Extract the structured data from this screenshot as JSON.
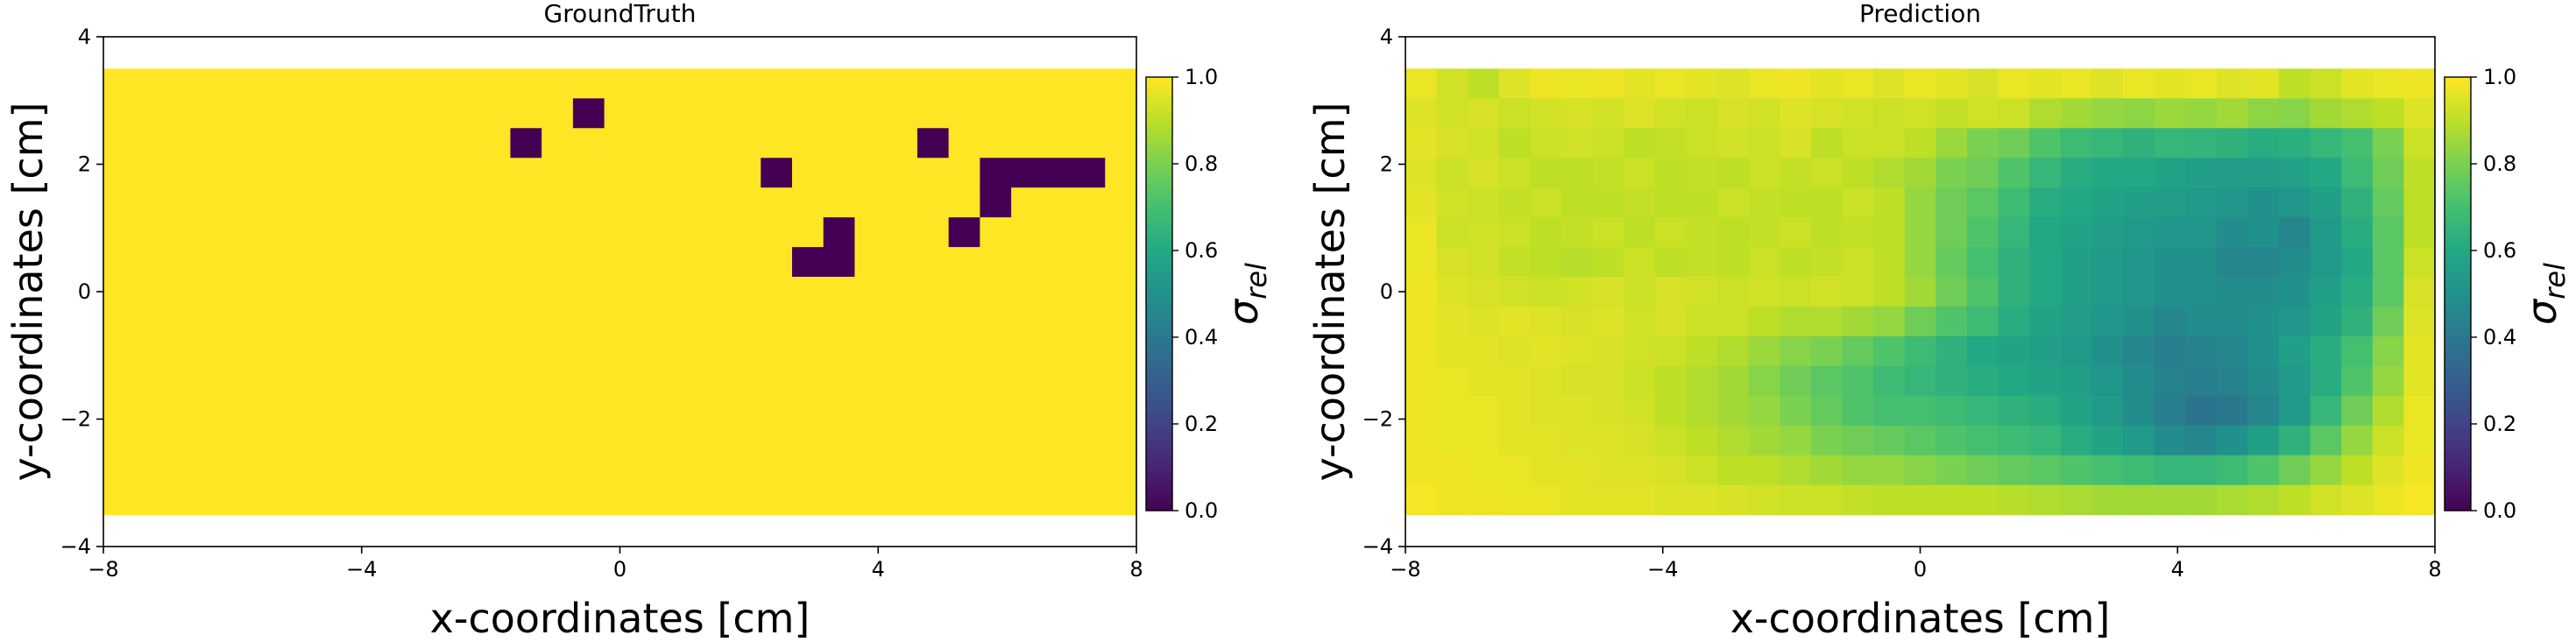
{
  "chart_data": [
    {
      "type": "heatmap",
      "title": "GroundTruth",
      "xlabel": "x-coordinates [cm]",
      "ylabel": "y-coordinates [cm]",
      "xlim": [
        -8,
        8
      ],
      "ylim": [
        -4,
        4
      ],
      "xticks": [
        -8,
        -4,
        0,
        4,
        8
      ],
      "yticks": [
        -4,
        -2,
        0,
        2,
        4
      ],
      "xtick_labels": [
        "−8",
        "−4",
        "0",
        "4",
        "8"
      ],
      "ytick_labels": [
        "−4",
        "−2",
        "0",
        "2",
        "4"
      ],
      "grid": {
        "x_start": -8,
        "x_end": 8,
        "y_start": 3.5,
        "y_end": -3.5,
        "cols": 33,
        "rows": 15
      },
      "colorbar": {
        "label": "σ_rel",
        "min": 0.0,
        "max": 1.0,
        "ticks": [
          "0.0",
          "0.2",
          "0.4",
          "0.6",
          "0.8",
          "1.0"
        ],
        "colormap": "viridis"
      },
      "values": [
        [
          1,
          1,
          1,
          1,
          1,
          1,
          1,
          1,
          1,
          1,
          1,
          1,
          1,
          1,
          1,
          1,
          1,
          1,
          1,
          1,
          1,
          1,
          1,
          1,
          1,
          1,
          1,
          1,
          1,
          1,
          1,
          1,
          1
        ],
        [
          1,
          1,
          1,
          1,
          1,
          1,
          1,
          1,
          1,
          1,
          1,
          1,
          1,
          1,
          1,
          0,
          1,
          1,
          1,
          1,
          1,
          1,
          1,
          1,
          1,
          1,
          1,
          1,
          1,
          1,
          1,
          1,
          1
        ],
        [
          1,
          1,
          1,
          1,
          1,
          1,
          1,
          1,
          1,
          1,
          1,
          1,
          1,
          0,
          1,
          1,
          1,
          1,
          1,
          1,
          1,
          1,
          1,
          1,
          1,
          1,
          0,
          1,
          1,
          1,
          1,
          1,
          1
        ],
        [
          1,
          1,
          1,
          1,
          1,
          1,
          1,
          1,
          1,
          1,
          1,
          1,
          1,
          1,
          1,
          1,
          1,
          1,
          1,
          1,
          1,
          0,
          1,
          1,
          1,
          1,
          1,
          1,
          0,
          0,
          0,
          0,
          1
        ],
        [
          1,
          1,
          1,
          1,
          1,
          1,
          1,
          1,
          1,
          1,
          1,
          1,
          1,
          1,
          1,
          1,
          1,
          1,
          1,
          1,
          1,
          1,
          1,
          1,
          1,
          1,
          1,
          1,
          0,
          1,
          1,
          1,
          1
        ],
        [
          1,
          1,
          1,
          1,
          1,
          1,
          1,
          1,
          1,
          1,
          1,
          1,
          1,
          1,
          1,
          1,
          1,
          1,
          1,
          1,
          1,
          1,
          1,
          0,
          1,
          1,
          1,
          0,
          1,
          1,
          1,
          1,
          1
        ],
        [
          1,
          1,
          1,
          1,
          1,
          1,
          1,
          1,
          1,
          1,
          1,
          1,
          1,
          1,
          1,
          1,
          1,
          1,
          1,
          1,
          1,
          1,
          0,
          0,
          1,
          1,
          1,
          1,
          1,
          1,
          1,
          1,
          1
        ],
        [
          1,
          1,
          1,
          1,
          1,
          1,
          1,
          1,
          1,
          1,
          1,
          1,
          1,
          1,
          1,
          1,
          1,
          1,
          1,
          1,
          1,
          1,
          1,
          1,
          1,
          1,
          1,
          1,
          1,
          1,
          1,
          1,
          1
        ],
        [
          1,
          1,
          1,
          1,
          1,
          1,
          1,
          1,
          1,
          1,
          1,
          1,
          1,
          1,
          1,
          1,
          1,
          1,
          1,
          1,
          1,
          1,
          1,
          1,
          1,
          1,
          1,
          1,
          1,
          1,
          1,
          1,
          1
        ],
        [
          1,
          1,
          1,
          1,
          1,
          1,
          1,
          1,
          1,
          1,
          1,
          1,
          1,
          1,
          1,
          1,
          1,
          1,
          1,
          1,
          1,
          1,
          1,
          1,
          1,
          1,
          1,
          1,
          1,
          1,
          1,
          1,
          1
        ],
        [
          1,
          1,
          1,
          1,
          1,
          1,
          1,
          1,
          1,
          1,
          1,
          1,
          1,
          1,
          1,
          1,
          1,
          1,
          1,
          1,
          1,
          1,
          1,
          1,
          1,
          1,
          1,
          1,
          1,
          1,
          1,
          1,
          1
        ],
        [
          1,
          1,
          1,
          1,
          1,
          1,
          1,
          1,
          1,
          1,
          1,
          1,
          1,
          1,
          1,
          1,
          1,
          1,
          1,
          1,
          1,
          1,
          1,
          1,
          1,
          1,
          1,
          1,
          1,
          1,
          1,
          1,
          1
        ],
        [
          1,
          1,
          1,
          1,
          1,
          1,
          1,
          1,
          1,
          1,
          1,
          1,
          1,
          1,
          1,
          1,
          1,
          1,
          1,
          1,
          1,
          1,
          1,
          1,
          1,
          1,
          1,
          1,
          1,
          1,
          1,
          1,
          1
        ],
        [
          1,
          1,
          1,
          1,
          1,
          1,
          1,
          1,
          1,
          1,
          1,
          1,
          1,
          1,
          1,
          1,
          1,
          1,
          1,
          1,
          1,
          1,
          1,
          1,
          1,
          1,
          1,
          1,
          1,
          1,
          1,
          1,
          1
        ],
        [
          1,
          1,
          1,
          1,
          1,
          1,
          1,
          1,
          1,
          1,
          1,
          1,
          1,
          1,
          1,
          1,
          1,
          1,
          1,
          1,
          1,
          1,
          1,
          1,
          1,
          1,
          1,
          1,
          1,
          1,
          1,
          1,
          1
        ]
      ]
    },
    {
      "type": "heatmap",
      "title": "Prediction",
      "xlabel": "x-coordinates [cm]",
      "ylabel": "y-coordinates [cm]",
      "xlim": [
        -8,
        8
      ],
      "ylim": [
        -4,
        4
      ],
      "xticks": [
        -8,
        -4,
        0,
        4,
        8
      ],
      "yticks": [
        -4,
        -2,
        0,
        2,
        4
      ],
      "xtick_labels": [
        "−8",
        "−4",
        "0",
        "4",
        "8"
      ],
      "ytick_labels": [
        "−4",
        "−2",
        "0",
        "2",
        "4"
      ],
      "grid": {
        "x_start": -8,
        "x_end": 8,
        "y_start": 3.5,
        "y_end": -3.5,
        "cols": 33,
        "rows": 15
      },
      "colorbar": {
        "label": "σ_rel",
        "min": 0.0,
        "max": 1.0,
        "ticks": [
          "0.0",
          "0.2",
          "0.4",
          "0.6",
          "0.8",
          "1.0"
        ],
        "colormap": "viridis"
      },
      "values": [
        [
          0.97,
          0.93,
          0.9,
          0.95,
          0.98,
          0.97,
          0.98,
          0.96,
          0.97,
          0.96,
          0.95,
          0.97,
          0.98,
          0.96,
          0.97,
          0.95,
          0.97,
          0.96,
          0.94,
          0.97,
          0.96,
          0.97,
          0.95,
          0.97,
          0.96,
          0.97,
          0.95,
          0.96,
          0.9,
          0.92,
          0.96,
          0.97,
          0.98
        ],
        [
          0.95,
          0.93,
          0.94,
          0.92,
          0.93,
          0.94,
          0.93,
          0.95,
          0.93,
          0.92,
          0.94,
          0.93,
          0.95,
          0.94,
          0.93,
          0.92,
          0.93,
          0.91,
          0.93,
          0.92,
          0.88,
          0.86,
          0.84,
          0.83,
          0.85,
          0.84,
          0.86,
          0.83,
          0.82,
          0.86,
          0.88,
          0.9,
          0.95
        ],
        [
          0.96,
          0.94,
          0.93,
          0.9,
          0.92,
          0.93,
          0.92,
          0.9,
          0.91,
          0.92,
          0.93,
          0.92,
          0.94,
          0.9,
          0.92,
          0.92,
          0.9,
          0.85,
          0.8,
          0.78,
          0.72,
          0.68,
          0.66,
          0.64,
          0.66,
          0.65,
          0.64,
          0.62,
          0.63,
          0.66,
          0.7,
          0.8,
          0.92
        ],
        [
          0.95,
          0.92,
          0.94,
          0.92,
          0.9,
          0.9,
          0.91,
          0.92,
          0.9,
          0.91,
          0.9,
          0.92,
          0.91,
          0.92,
          0.9,
          0.88,
          0.86,
          0.8,
          0.78,
          0.72,
          0.66,
          0.62,
          0.6,
          0.6,
          0.58,
          0.56,
          0.55,
          0.55,
          0.57,
          0.6,
          0.68,
          0.78,
          0.9
        ],
        [
          0.96,
          0.93,
          0.92,
          0.91,
          0.92,
          0.9,
          0.9,
          0.91,
          0.9,
          0.9,
          0.92,
          0.91,
          0.9,
          0.9,
          0.92,
          0.9,
          0.84,
          0.78,
          0.74,
          0.68,
          0.62,
          0.6,
          0.58,
          0.56,
          0.55,
          0.54,
          0.52,
          0.5,
          0.52,
          0.56,
          0.64,
          0.76,
          0.9
        ],
        [
          0.97,
          0.92,
          0.93,
          0.92,
          0.9,
          0.91,
          0.92,
          0.9,
          0.92,
          0.91,
          0.9,
          0.91,
          0.92,
          0.9,
          0.91,
          0.9,
          0.84,
          0.78,
          0.72,
          0.66,
          0.6,
          0.58,
          0.55,
          0.54,
          0.52,
          0.52,
          0.48,
          0.5,
          0.46,
          0.54,
          0.62,
          0.74,
          0.9
        ],
        [
          0.97,
          0.94,
          0.93,
          0.91,
          0.9,
          0.89,
          0.9,
          0.92,
          0.9,
          0.91,
          0.9,
          0.92,
          0.9,
          0.91,
          0.92,
          0.9,
          0.84,
          0.76,
          0.7,
          0.64,
          0.6,
          0.56,
          0.54,
          0.52,
          0.5,
          0.5,
          0.46,
          0.46,
          0.48,
          0.54,
          0.6,
          0.74,
          0.92
        ],
        [
          0.98,
          0.95,
          0.94,
          0.93,
          0.92,
          0.93,
          0.94,
          0.92,
          0.94,
          0.93,
          0.92,
          0.93,
          0.92,
          0.93,
          0.92,
          0.9,
          0.86,
          0.78,
          0.72,
          0.64,
          0.6,
          0.56,
          0.54,
          0.52,
          0.5,
          0.5,
          0.48,
          0.48,
          0.5,
          0.56,
          0.62,
          0.74,
          0.94
        ],
        [
          0.98,
          0.96,
          0.95,
          0.96,
          0.95,
          0.94,
          0.95,
          0.93,
          0.94,
          0.92,
          0.92,
          0.9,
          0.88,
          0.88,
          0.86,
          0.84,
          0.78,
          0.72,
          0.68,
          0.62,
          0.58,
          0.55,
          0.52,
          0.5,
          0.46,
          0.48,
          0.48,
          0.5,
          0.52,
          0.58,
          0.64,
          0.78,
          0.95
        ],
        [
          0.98,
          0.96,
          0.96,
          0.95,
          0.96,
          0.95,
          0.94,
          0.93,
          0.92,
          0.9,
          0.88,
          0.85,
          0.82,
          0.8,
          0.76,
          0.72,
          0.68,
          0.64,
          0.6,
          0.58,
          0.56,
          0.54,
          0.5,
          0.46,
          0.42,
          0.44,
          0.46,
          0.5,
          0.56,
          0.62,
          0.7,
          0.82,
          0.96
        ],
        [
          0.98,
          0.97,
          0.96,
          0.96,
          0.95,
          0.94,
          0.94,
          0.92,
          0.9,
          0.88,
          0.86,
          0.82,
          0.78,
          0.74,
          0.72,
          0.68,
          0.66,
          0.64,
          0.62,
          0.6,
          0.58,
          0.56,
          0.52,
          0.48,
          0.44,
          0.42,
          0.44,
          0.48,
          0.54,
          0.62,
          0.72,
          0.84,
          0.96
        ],
        [
          0.98,
          0.97,
          0.97,
          0.96,
          0.95,
          0.95,
          0.94,
          0.93,
          0.9,
          0.88,
          0.86,
          0.84,
          0.8,
          0.76,
          0.72,
          0.7,
          0.7,
          0.68,
          0.66,
          0.64,
          0.62,
          0.58,
          0.54,
          0.48,
          0.42,
          0.38,
          0.4,
          0.46,
          0.54,
          0.66,
          0.78,
          0.88,
          0.97
        ],
        [
          0.98,
          0.97,
          0.97,
          0.96,
          0.96,
          0.95,
          0.95,
          0.94,
          0.92,
          0.9,
          0.88,
          0.86,
          0.84,
          0.8,
          0.78,
          0.76,
          0.74,
          0.72,
          0.7,
          0.68,
          0.66,
          0.62,
          0.58,
          0.54,
          0.48,
          0.46,
          0.5,
          0.56,
          0.64,
          0.74,
          0.84,
          0.92,
          0.97
        ],
        [
          0.98,
          0.98,
          0.97,
          0.97,
          0.96,
          0.96,
          0.95,
          0.95,
          0.94,
          0.92,
          0.9,
          0.9,
          0.88,
          0.86,
          0.84,
          0.84,
          0.82,
          0.8,
          0.78,
          0.76,
          0.74,
          0.72,
          0.7,
          0.68,
          0.66,
          0.66,
          0.68,
          0.72,
          0.78,
          0.84,
          0.9,
          0.95,
          0.98
        ],
        [
          0.99,
          0.98,
          0.98,
          0.97,
          0.97,
          0.96,
          0.96,
          0.96,
          0.95,
          0.95,
          0.94,
          0.93,
          0.92,
          0.92,
          0.91,
          0.9,
          0.9,
          0.9,
          0.9,
          0.89,
          0.88,
          0.87,
          0.86,
          0.86,
          0.86,
          0.86,
          0.87,
          0.88,
          0.9,
          0.93,
          0.95,
          0.97,
          0.99
        ]
      ]
    }
  ]
}
